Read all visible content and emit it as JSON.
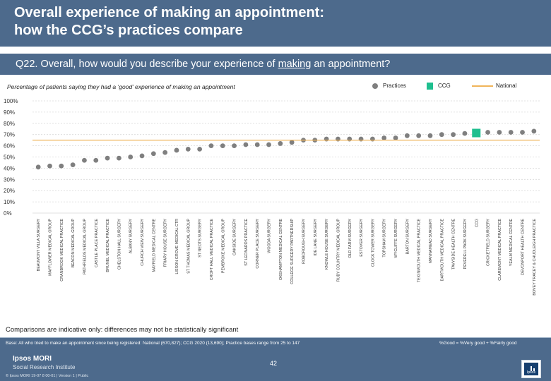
{
  "header": {
    "title": "Overall experience of making an appointment:\nhow the CCG’s practices compare",
    "question_prefix": "Q22. Overall, how would you describe your experience of ",
    "question_underlined": "making",
    "question_suffix": " an appointment?"
  },
  "subtitle": "Percentage of patients saying they had a ‘good’ experience of making an appointment",
  "legend": {
    "practices": "Practices",
    "ccg": "CCG",
    "national": "National"
  },
  "colors": {
    "header_bg": "#4d6a8c",
    "practice_marker": "#7f7f7f",
    "ccg_bar": "#1fbf8f",
    "national_line": "#f0b45a"
  },
  "note": "Comparisons are indicative only: differences may not be statistically significant",
  "footer": {
    "base": "Base: All who tried to make an appointment since being registered: National (670,827); CCG 2020 (13,690); Practice bases range from 25 to 147",
    "good_note": "%Good = %Very good + %Fairly good",
    "brand": "Ipsos MORI",
    "brand_sub": "Social Research Institute",
    "copyright": "© Ipsos MORI     19-07 8 00-01 | Version 1 | Public",
    "page_number": "42",
    "logo_text": "Ipsos"
  },
  "chart_data": {
    "type": "scatter",
    "y_ticks": [
      "0%",
      "10%",
      "20%",
      "30%",
      "40%",
      "50%",
      "60%",
      "70%",
      "80%",
      "90%",
      "100%"
    ],
    "ylim": [
      0,
      100
    ],
    "national_value": 65,
    "highlight_category": "CCG",
    "categories": [
      "BEAUMONT VILLA SURGERY",
      "MAYFLOWER MEDICAL GROUP",
      "CRANBROOK MEDICAL PRACTICE",
      "BEACON MEDICAL GROUP",
      "PATHFIELDS MEDICAL GROUP",
      "CASTLE PLACE PRACTICE",
      "BRUNEL MEDICAL PRACTICE",
      "CHELSTON HALL SURGERY",
      "ALBANY SURGERY",
      "CHURCH VIEW SURGERY",
      "MAYFIELD MEDICAL CENTRE",
      "FRIARY HOUSE SURGERY",
      "LISSON GROVE MEDICAL CTR",
      "ST THOMAS MEDICAL GROUP",
      "ST NEOTS SURGERY",
      "CROFT HALL MEDICAL PRACTICE",
      "PEMBROKE MEDICAL GROUP",
      "OAKSIDE SURGERY",
      "ST LEONARDS PRACTICE",
      "CORNER PLACE SURGERY",
      "WOODA SURGERY",
      "OKEHAMPTON MEDICAL CENTRE",
      "COLLEGE SURGERY PARTNERSHIP",
      "ROBOROUGH SURGERY",
      "IDE LANE SURGERY",
      "KNOWLE HOUSE SURGERY",
      "RUBY COUNTRY MEDICAL GROUP",
      "OLD FARM SURGERY",
      "ESTOVER SURGERY",
      "CLOCK TOWER SURGERY",
      "TOPSHAM SURGERY",
      "WYCLIFFE SURGERY",
      "BARTON SURGERY",
      "TEIGNMOUTH MEDICAL PRACTICE",
      "MANNAMEAD SURGERY",
      "DARTMOUTH MEDICAL PRACTICE",
      "TAVYSIDE HEALTH CENTRE",
      "PEVERELL PARK SURGERY",
      "CCG",
      "CRICKETFIELD SURGERY",
      "CLAREMONT MEDICAL PRACTICE",
      "YEALM MEDICAL CENTRE",
      "DEVONPORT HEALTH CENTRE",
      "BOVEY TRACEY & CHUDLEIGH PRACTICE"
    ],
    "values": [
      41,
      42,
      42,
      43,
      47,
      47,
      49,
      49,
      50,
      51,
      53,
      54,
      56,
      57,
      57,
      60,
      60,
      60,
      61,
      61,
      61,
      62,
      63,
      65,
      65,
      66,
      66,
      66,
      66,
      66,
      67,
      67,
      69,
      69,
      69,
      70,
      70,
      71,
      72,
      72,
      72,
      72,
      72,
      73
    ],
    "title": "",
    "xlabel": "",
    "ylabel": ""
  }
}
